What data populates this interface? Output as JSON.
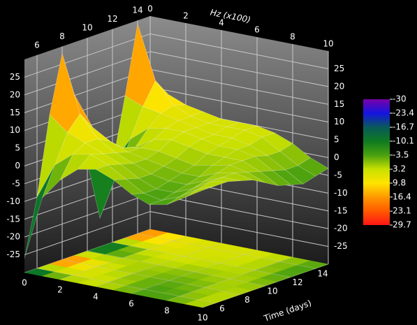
{
  "chart_data": {
    "type": "surface",
    "x_label": "Hz (x100)",
    "y_label": "Time (days)",
    "x": [
      0,
      1,
      2,
      3,
      4,
      5,
      6,
      7,
      8,
      9,
      10
    ],
    "y": [
      5,
      6,
      7,
      8,
      9,
      10,
      11,
      12,
      13,
      14,
      15
    ],
    "z": [
      [
        -26,
        -8,
        -2,
        2,
        3,
        1,
        -2,
        -4,
        -3,
        0,
        3
      ],
      [
        -10,
        0,
        4,
        5,
        3,
        0,
        -3,
        -4,
        -2,
        1,
        3
      ],
      [
        12,
        8,
        6,
        4,
        2,
        -1,
        -3,
        -3,
        -1,
        2,
        3
      ],
      [
        28,
        12,
        6,
        3,
        1,
        -1,
        -2,
        -2,
        0,
        2,
        2
      ],
      [
        15,
        7,
        4,
        2,
        1,
        0,
        -1,
        -1,
        1,
        2,
        1
      ],
      [
        -5,
        -2,
        1,
        2,
        2,
        1,
        0,
        1,
        2,
        1,
        -1
      ],
      [
        -22,
        -8,
        0,
        3,
        4,
        3,
        2,
        2,
        2,
        0,
        -3
      ],
      [
        -8,
        0,
        4,
        5,
        5,
        4,
        3,
        3,
        2,
        -1,
        -4
      ],
      [
        10,
        8,
        7,
        6,
        5,
        4,
        4,
        3,
        1,
        -2,
        -5
      ],
      [
        29,
        14,
        8,
        6,
        5,
        5,
        5,
        4,
        1,
        -2,
        -4
      ],
      [
        12,
        9,
        7,
        6,
        5,
        5,
        5,
        4,
        2,
        -1,
        -3
      ]
    ],
    "xlim": [
      0,
      10
    ],
    "ylim": [
      5,
      15
    ],
    "zlim": [
      -30,
      30
    ],
    "xticks": [
      0,
      2,
      4,
      6,
      8,
      10
    ],
    "yticks": [
      6,
      8,
      10,
      12,
      14
    ],
    "zticks": [
      -25,
      -20,
      -15,
      -10,
      -5,
      0,
      5,
      10,
      15,
      20,
      25
    ],
    "grid": true,
    "colorbar_ticks": [
      -30,
      -23.4,
      -16.7,
      -10.1,
      -3.5,
      3.2,
      9.8,
      16.4,
      23.1,
      29.7
    ],
    "colors": [
      "#7a00a8",
      "#1414e0",
      "#0a5a5a",
      "#0e7a20",
      "#4aa010",
      "#c8e000",
      "#ffe400",
      "#ff9800",
      "#ff5a00",
      "#ff1414"
    ]
  }
}
